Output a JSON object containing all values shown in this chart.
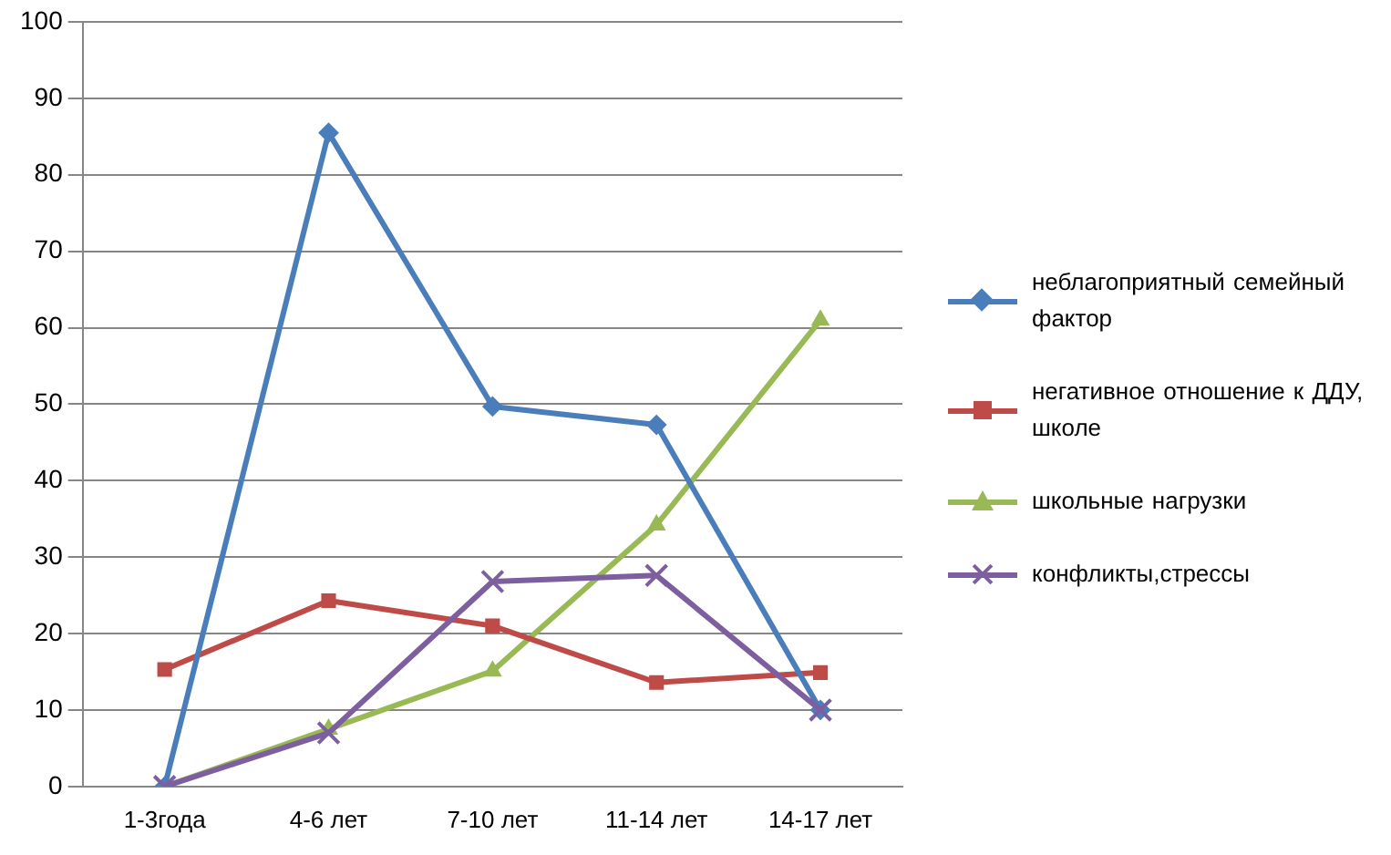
{
  "chart_data": {
    "type": "line",
    "categories": [
      "1-3года",
      "4-6 лет",
      "7-10 лет",
      "11-14 лет",
      "14-17 лет"
    ],
    "series": [
      {
        "name": "неблагоприятный семейный фактор",
        "color": "#4a7ebb",
        "marker": "diamond",
        "values": [
          0,
          85.5,
          49.7,
          47.3,
          10
        ]
      },
      {
        "name": "негативное отношение  к ДДУ, школе",
        "color": "#be4b48",
        "marker": "square",
        "values": [
          15.3,
          24.3,
          21,
          13.6,
          14.9
        ]
      },
      {
        "name": "школьные  нагрузки",
        "color": "#98b954",
        "marker": "triangle",
        "values": [
          0,
          7.5,
          15.1,
          34.2,
          61
        ]
      },
      {
        "name": "конфликты,стрессы",
        "color": "#7d5fa0",
        "marker": "cross",
        "values": [
          0,
          7,
          26.8,
          27.6,
          10
        ]
      }
    ],
    "ylim": [
      0,
      100
    ],
    "yticks": [
      0,
      10,
      20,
      30,
      40,
      50,
      60,
      70,
      80,
      90,
      100
    ],
    "grid": "y",
    "legend": "right",
    "line_style": "solid"
  }
}
